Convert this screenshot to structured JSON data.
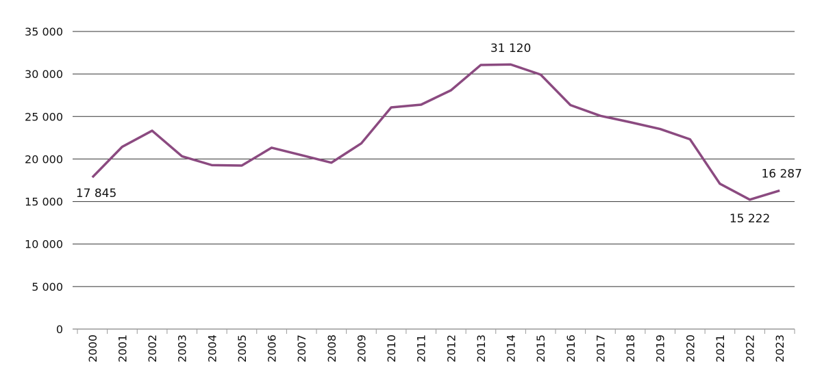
{
  "chart_data": {
    "type": "line",
    "title": "",
    "xlabel": "",
    "ylabel": "",
    "ylim": [
      0,
      35000
    ],
    "yticks": [
      0,
      5000,
      10000,
      15000,
      20000,
      25000,
      30000,
      35000
    ],
    "ytick_labels": [
      "0",
      "5 000",
      "10 000",
      "15 000",
      "20 000",
      "25 000",
      "30 000",
      "35 000"
    ],
    "grid": "horizontal",
    "legend": "none",
    "categories": [
      "2000",
      "2001",
      "2002",
      "2003",
      "2004",
      "2005",
      "2006",
      "2007",
      "2008",
      "2009",
      "2010",
      "2011",
      "2012",
      "2013",
      "2014",
      "2015",
      "2016",
      "2017",
      "2018",
      "2019",
      "2020",
      "2021",
      "2022",
      "2023"
    ],
    "series": [
      {
        "color": "#8b4a80",
        "values": [
          17845,
          21440,
          23330,
          20320,
          19280,
          19230,
          21330,
          20450,
          19570,
          21840,
          26070,
          26390,
          28080,
          31060,
          31120,
          29930,
          26340,
          25080,
          24330,
          23530,
          22320,
          17090,
          15222,
          16287
        ]
      }
    ],
    "annotations": [
      {
        "category": "2000",
        "text": "17 845",
        "position": "below"
      },
      {
        "category": "2014",
        "text": "31 120",
        "position": "above"
      },
      {
        "category": "2022",
        "text": "15 222",
        "position": "below"
      },
      {
        "category": "2023",
        "text": "16 287",
        "position": "above"
      }
    ]
  }
}
